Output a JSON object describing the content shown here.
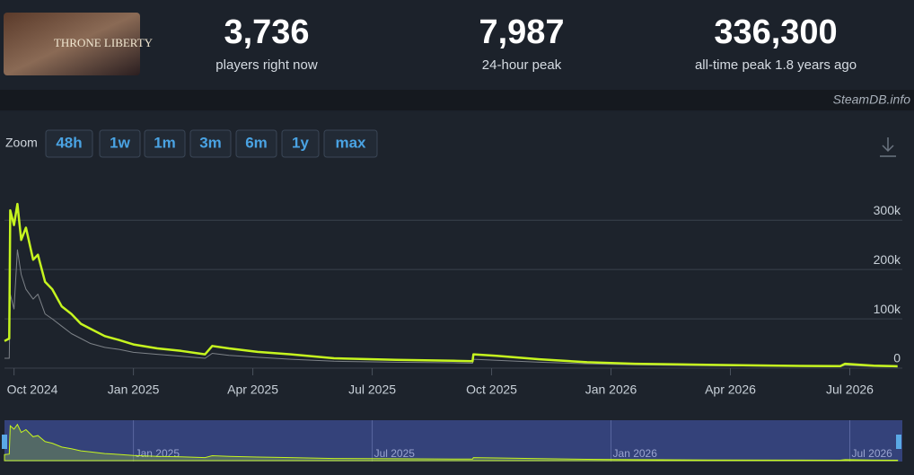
{
  "header": {
    "logo_text": "THRONE LIBERTY",
    "stats": [
      {
        "value": "3,736",
        "label": "players right now"
      },
      {
        "value": "7,987",
        "label": "24-hour peak"
      },
      {
        "value": "336,300",
        "label": "all-time peak 1.8 years ago"
      }
    ],
    "credit": "SteamDB.info"
  },
  "zoom": {
    "label": "Zoom",
    "buttons": [
      "48h",
      "1w",
      "1m",
      "3m",
      "6m",
      "1y",
      "max"
    ]
  },
  "chart_data": {
    "type": "line",
    "x": [
      2024.73,
      2024.74,
      2024.742,
      2024.75,
      2024.757,
      2024.765,
      2024.775,
      2024.79,
      2024.8,
      2024.815,
      2024.83,
      2024.85,
      2024.87,
      2024.89,
      2024.91,
      2024.94,
      2024.97,
      2025.0,
      2025.05,
      2025.1,
      2025.15,
      2025.165,
      2025.2,
      2025.26,
      2025.33,
      2025.42,
      2025.55,
      2025.67,
      2025.71,
      2025.712,
      2025.76,
      2025.85,
      2025.95,
      2026.05,
      2026.2,
      2026.35,
      2026.48,
      2026.49,
      2026.55,
      2026.6
    ],
    "series": [
      {
        "color": "#c6f51f",
        "values": [
          55000,
          60000,
          320000,
          290000,
          333000,
          260000,
          285000,
          220000,
          230000,
          175000,
          160000,
          125000,
          110000,
          90000,
          80000,
          65000,
          57000,
          48000,
          40000,
          35000,
          28000,
          45000,
          40000,
          33000,
          28000,
          20000,
          17000,
          15000,
          14000,
          28000,
          25000,
          18000,
          12000,
          9000,
          7000,
          5000,
          4000,
          9000,
          5000,
          3736
        ]
      },
      {
        "color": "#7d8288",
        "values": [
          20000,
          20000,
          150000,
          120000,
          240000,
          190000,
          160000,
          140000,
          150000,
          110000,
          100000,
          85000,
          70000,
          60000,
          50000,
          42000,
          38000,
          32000,
          28000,
          24000,
          20000,
          30000,
          26000,
          22000,
          18000,
          14000,
          12000,
          11000,
          10000,
          18000,
          16000,
          12000,
          9000,
          7000,
          5000,
          4000,
          3000,
          6000,
          3500,
          2500
        ]
      }
    ],
    "xlim": [
      2024.73,
      2026.61
    ],
    "xticks": [
      {
        "value": 2024.75,
        "label": "Oct 2024"
      },
      {
        "value": 2025.0,
        "label": "Jan 2025"
      },
      {
        "value": 2025.25,
        "label": "Apr 2025"
      },
      {
        "value": 2025.5,
        "label": "Jul 2025"
      },
      {
        "value": 2025.75,
        "label": "Oct 2025"
      },
      {
        "value": 2026.0,
        "label": "Jan 2026"
      },
      {
        "value": 2026.25,
        "label": "Apr 2026"
      },
      {
        "value": 2026.5,
        "label": "Jul 2026"
      }
    ],
    "ylim": [
      0,
      355000
    ],
    "yticks": [
      0,
      {
        "value": 100000,
        "label": "100k"
      },
      {
        "value": 200000,
        "label": "200k"
      },
      {
        "value": 300000,
        "label": "300k"
      }
    ],
    "grid": true,
    "navigator_xticks": [
      {
        "value": 2025.0,
        "label": "Jan 2025"
      },
      {
        "value": 2025.5,
        "label": "Jul 2025"
      },
      {
        "value": 2026.0,
        "label": "Jan 2026"
      },
      {
        "value": 2026.5,
        "label": "Jul 2026"
      }
    ]
  }
}
